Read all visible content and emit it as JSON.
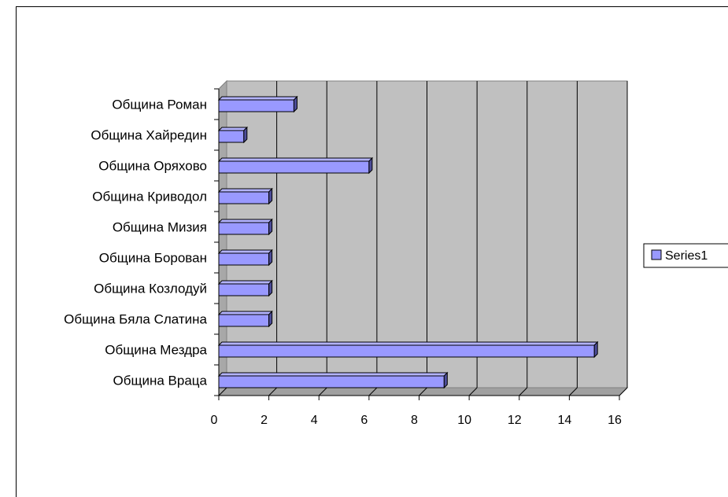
{
  "chart_data": {
    "type": "bar",
    "orientation": "horizontal",
    "style": "3d",
    "categories": [
      "Община Враца",
      "Община Мездра",
      "Община Бяла Слатина",
      "Община Козлодуй",
      "Община Борован",
      "Община Мизия",
      "Община Криводол",
      "Община Оряхово",
      "Община Хайредин",
      "Община Роман"
    ],
    "series": [
      {
        "name": "Series1",
        "values": [
          9,
          15,
          2,
          2,
          2,
          2,
          2,
          6,
          1,
          3
        ],
        "color": "#9999ff"
      }
    ],
    "xlim": [
      0,
      16
    ],
    "x_ticks": [
      0,
      2,
      4,
      6,
      8,
      10,
      12,
      14,
      16
    ],
    "x_tick_labels": [
      "0",
      "2",
      "4",
      "6",
      "8",
      "10",
      "12",
      "14",
      "16"
    ],
    "grid": true,
    "plot_background": "#c0c0c0",
    "legend_position": "right"
  }
}
